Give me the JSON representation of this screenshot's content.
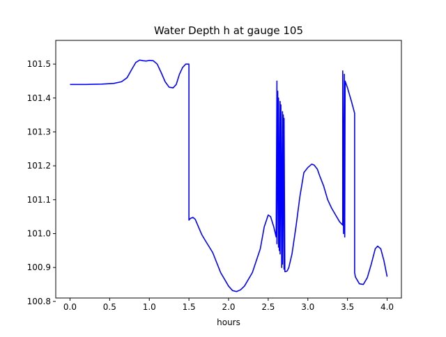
{
  "chart_data": {
    "type": "line",
    "title": "Water Depth h at gauge 105",
    "xlabel": "hours",
    "ylabel": "",
    "xlim": [
      -0.18,
      4.18
    ],
    "ylim": [
      100.81,
      101.57
    ],
    "xticks": [
      0.0,
      0.5,
      1.0,
      1.5,
      2.0,
      2.5,
      3.0,
      3.5,
      4.0
    ],
    "xtick_labels": [
      "0.0",
      "0.5",
      "1.0",
      "1.5",
      "2.0",
      "2.5",
      "3.0",
      "3.5",
      "4.0"
    ],
    "yticks": [
      100.8,
      100.9,
      101.0,
      101.1,
      101.2,
      101.3,
      101.4,
      101.5
    ],
    "ytick_labels": [
      "100.8",
      "100.9",
      "101.0",
      "101.1",
      "101.2",
      "101.3",
      "101.4",
      "101.5"
    ],
    "grid": false,
    "legend": "none",
    "series": [
      {
        "color": "#0000ff",
        "x": [
          0.0,
          0.2,
          0.4,
          0.55,
          0.65,
          0.72,
          0.78,
          0.83,
          0.88,
          0.92,
          0.96,
          1.0,
          1.05,
          1.1,
          1.15,
          1.2,
          1.25,
          1.3,
          1.34,
          1.38,
          1.42,
          1.46,
          1.5,
          1.5,
          1.52,
          1.55,
          1.58,
          1.62,
          1.66,
          1.7,
          1.8,
          1.9,
          2.0,
          2.05,
          2.1,
          2.15,
          2.2,
          2.3,
          2.4,
          2.45,
          2.5,
          2.53,
          2.57,
          2.6,
          2.61,
          2.61,
          2.62,
          2.63,
          2.63,
          2.64,
          2.65,
          2.65,
          2.66,
          2.67,
          2.68,
          2.68,
          2.69,
          2.7,
          2.7,
          2.71,
          2.72,
          2.74,
          2.76,
          2.8,
          2.85,
          2.9,
          2.95,
          3.0,
          3.05,
          3.08,
          3.12,
          3.15,
          3.2,
          3.25,
          3.3,
          3.35,
          3.4,
          3.44,
          3.44,
          3.45,
          3.46,
          3.465,
          3.47,
          3.47,
          3.5,
          3.55,
          3.59,
          3.59,
          3.6,
          3.65,
          3.7,
          3.75,
          3.8,
          3.85,
          3.88,
          3.92,
          3.96,
          4.0
        ],
        "y": [
          101.44,
          101.44,
          101.441,
          101.443,
          101.448,
          101.46,
          101.485,
          101.505,
          101.512,
          101.51,
          101.509,
          101.511,
          101.51,
          101.5,
          101.475,
          101.448,
          101.432,
          101.43,
          101.44,
          101.47,
          101.49,
          101.5,
          101.5,
          101.04,
          101.045,
          101.048,
          101.042,
          101.02,
          100.998,
          100.982,
          100.944,
          100.885,
          100.845,
          100.832,
          100.829,
          100.834,
          100.845,
          100.885,
          100.955,
          101.02,
          101.055,
          101.05,
          101.02,
          100.99,
          101.45,
          100.97,
          101.42,
          100.96,
          101.4,
          100.95,
          101.39,
          100.94,
          101.38,
          100.9,
          101.36,
          100.91,
          101.35,
          100.895,
          101.34,
          100.888,
          100.888,
          100.89,
          100.9,
          100.94,
          101.02,
          101.11,
          101.18,
          101.195,
          101.205,
          101.202,
          101.19,
          101.17,
          101.14,
          101.1,
          101.075,
          101.055,
          101.035,
          101.025,
          101.48,
          101.0,
          101.47,
          100.99,
          101.45,
          101.45,
          101.43,
          101.39,
          101.355,
          100.885,
          100.872,
          100.852,
          100.85,
          100.87,
          100.91,
          100.955,
          100.963,
          100.955,
          100.92,
          100.873
        ]
      }
    ]
  }
}
